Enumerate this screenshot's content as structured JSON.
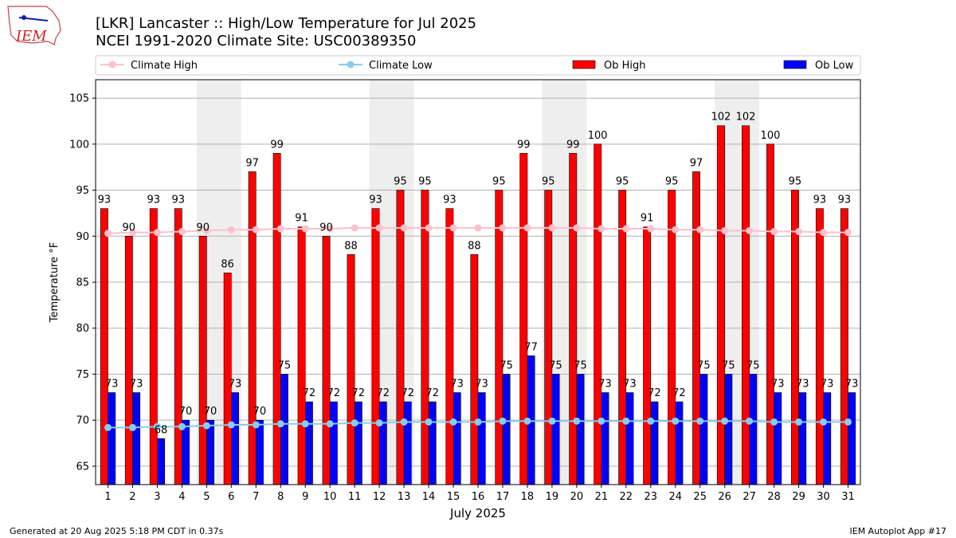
{
  "header": {
    "title_line1": "[LKR] Lancaster :: High/Low Temperature for Jul 2025",
    "title_line2": "NCEI 1991-2020 Climate Site: USC00389350",
    "logo_text": "IEM"
  },
  "footer": {
    "generated": "Generated at 20 Aug 2025 5:18 PM CDT in 0.37s",
    "app": "IEM Autoplot App #17"
  },
  "colors": {
    "ob_high": "#ff0000",
    "ob_low": "#0000ff",
    "climate_high": "#ffc0cb",
    "climate_low": "#87ceeb",
    "weekend_shade": "#eeeeee",
    "grid": "#b0b0b0"
  },
  "chart_data": {
    "type": "bar",
    "xlabel": "July 2025",
    "ylabel": "Temperature °F",
    "ylim": [
      63,
      107
    ],
    "yticks": [
      65,
      70,
      75,
      80,
      85,
      90,
      95,
      100,
      105
    ],
    "grid": true,
    "legend_position": "top",
    "legend": [
      "Climate High",
      "Climate Low",
      "Ob High",
      "Ob Low"
    ],
    "categories": [
      "1",
      "2",
      "3",
      "4",
      "5",
      "6",
      "7",
      "8",
      "9",
      "10",
      "11",
      "12",
      "13",
      "14",
      "15",
      "16",
      "17",
      "18",
      "19",
      "20",
      "21",
      "22",
      "23",
      "24",
      "25",
      "26",
      "27",
      "28",
      "29",
      "30",
      "31"
    ],
    "shaded_days": [
      [
        5,
        6
      ],
      [
        12,
        13
      ],
      [
        19,
        20
      ],
      [
        26,
        27
      ]
    ],
    "series": [
      {
        "name": "Ob High",
        "kind": "bar",
        "values": [
          93,
          90,
          93,
          93,
          90,
          86,
          97,
          99,
          91,
          90,
          88,
          93,
          95,
          95,
          93,
          88,
          95,
          99,
          95,
          99,
          100,
          95,
          91,
          95,
          97,
          102,
          102,
          100,
          95,
          93,
          93
        ]
      },
      {
        "name": "Ob Low",
        "kind": "bar",
        "values": [
          73,
          73,
          68,
          70,
          70,
          73,
          70,
          75,
          72,
          72,
          72,
          72,
          72,
          72,
          73,
          73,
          75,
          77,
          75,
          75,
          73,
          73,
          72,
          72,
          75,
          75,
          75,
          73,
          73,
          73,
          73
        ]
      },
      {
        "name": "Climate High",
        "kind": "line",
        "values": [
          90.3,
          90.4,
          90.4,
          90.5,
          90.6,
          90.7,
          90.7,
          90.8,
          90.8,
          90.8,
          90.9,
          90.9,
          90.9,
          90.9,
          90.9,
          90.9,
          90.9,
          90.9,
          90.9,
          90.9,
          90.8,
          90.8,
          90.8,
          90.7,
          90.7,
          90.6,
          90.6,
          90.5,
          90.5,
          90.4,
          90.4
        ]
      },
      {
        "name": "Climate Low",
        "kind": "line",
        "values": [
          69.2,
          69.2,
          69.3,
          69.3,
          69.4,
          69.5,
          69.5,
          69.6,
          69.6,
          69.6,
          69.7,
          69.7,
          69.8,
          69.8,
          69.8,
          69.8,
          69.9,
          69.9,
          69.9,
          69.9,
          69.9,
          69.9,
          69.9,
          69.9,
          69.9,
          69.9,
          69.9,
          69.8,
          69.8,
          69.8,
          69.8
        ]
      }
    ]
  }
}
